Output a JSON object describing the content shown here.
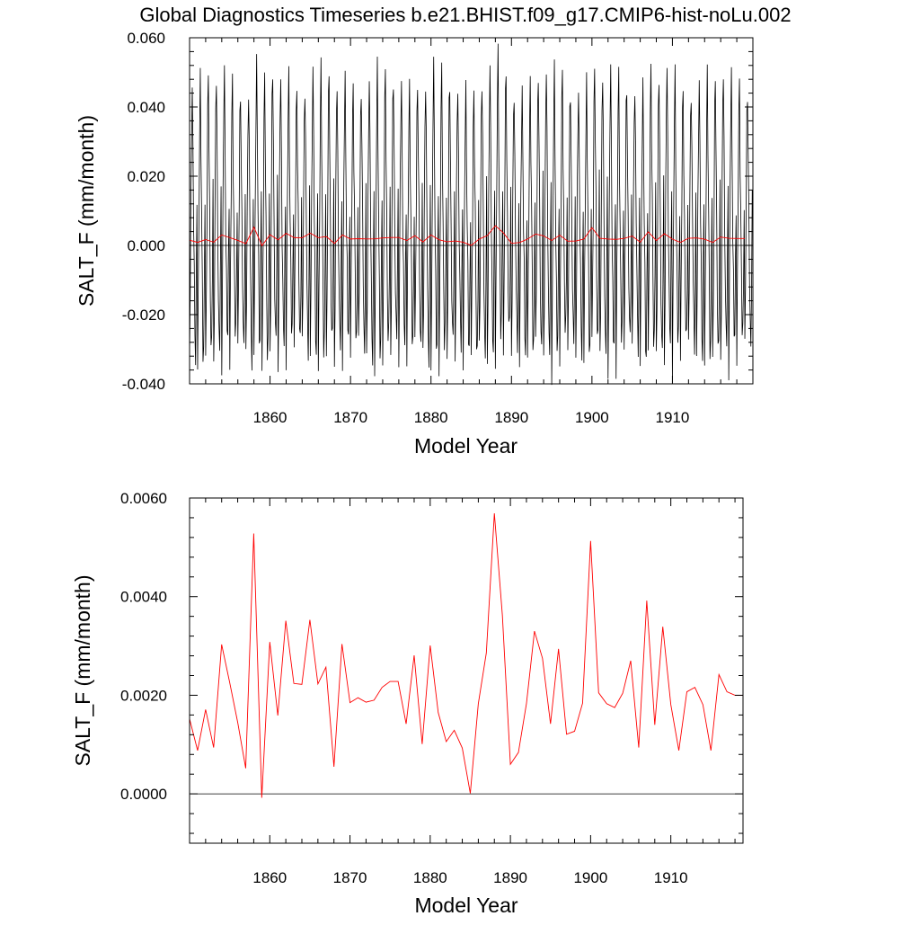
{
  "title": "Global Diagnostics Timeseries b.e21.BHIST.f09_g17.CMIP6-hist-noLu.002",
  "colors": {
    "monthly": "#000000",
    "annual": "#ff0000",
    "zero_line": "#000000"
  },
  "chart_data": [
    {
      "type": "line",
      "xlabel": "Model Year",
      "ylabel": "SALT_F (mm/month)",
      "xlim": [
        1850,
        1920
      ],
      "ylim": [
        -0.04,
        0.06
      ],
      "x_ticks": [
        {
          "value": 1860,
          "label": "1860"
        },
        {
          "value": 1870,
          "label": "1870"
        },
        {
          "value": 1880,
          "label": "1880"
        },
        {
          "value": 1890,
          "label": "1890"
        },
        {
          "value": 1900,
          "label": "1900"
        },
        {
          "value": 1910,
          "label": "1910"
        }
      ],
      "y_ticks": [
        {
          "value": 0.06,
          "label": "0.060"
        },
        {
          "value": 0.04,
          "label": "0.040"
        },
        {
          "value": 0.02,
          "label": "0.020"
        },
        {
          "value": 0.0,
          "label": "0.000"
        },
        {
          "value": -0.02,
          "label": "-0.020"
        },
        {
          "value": -0.04,
          "label": "-0.040"
        }
      ],
      "reference_line": 0.0,
      "monthly_series": {
        "start_year": 1850,
        "end_year": 1919,
        "annual_cycle": [
          -0.035,
          -0.015,
          0.01,
          0.035,
          0.046,
          0.025,
          0.005,
          -0.012,
          -0.028,
          -0.03,
          -0.01,
          0.012
        ]
      },
      "series": [
        {
          "x": [
            1850,
            1851,
            1852,
            1853,
            1854,
            1855,
            1856,
            1857,
            1858,
            1859,
            1860,
            1861,
            1862,
            1863,
            1864,
            1865,
            1866,
            1867,
            1868,
            1869,
            1870,
            1871,
            1872,
            1873,
            1874,
            1875,
            1876,
            1877,
            1878,
            1879,
            1880,
            1881,
            1882,
            1883,
            1884,
            1885,
            1886,
            1887,
            1888,
            1889,
            1890,
            1891,
            1892,
            1893,
            1894,
            1895,
            1896,
            1897,
            1898,
            1899,
            1900,
            1901,
            1902,
            1903,
            1904,
            1905,
            1906,
            1907,
            1908,
            1909,
            1910,
            1911,
            1912,
            1913,
            1914,
            1915,
            1916,
            1917,
            1918,
            1919
          ],
          "values": [
            0.00152,
            0.00088,
            0.00171,
            0.00094,
            0.00303,
            0.00226,
            0.00145,
            0.00052,
            0.00528,
            -8e-05,
            0.00308,
            0.00159,
            0.00351,
            0.00224,
            0.00222,
            0.00353,
            0.00223,
            0.00257,
            0.00055,
            0.00304,
            0.00185,
            0.00195,
            0.00186,
            0.0019,
            0.00216,
            0.00228,
            0.00228,
            0.00142,
            0.00281,
            0.00101,
            0.00301,
            0.00165,
            0.00106,
            0.00129,
            0.00093,
            1e-05,
            0.00183,
            0.00286,
            0.00569,
            0.00362,
            0.0006,
            0.00084,
            0.00183,
            0.0033,
            0.00275,
            0.00142,
            0.00294,
            0.00121,
            0.00127,
            0.00184,
            0.00513,
            0.00205,
            0.00183,
            0.00175,
            0.00204,
            0.0027,
            0.00094,
            0.00392,
            0.0014,
            0.00339,
            0.00181,
            0.00088,
            0.00207,
            0.00216,
            0.00181,
            0.00088,
            0.00242,
            0.00207,
            0.002,
            0.002
          ]
        }
      ]
    },
    {
      "type": "line",
      "xlabel": "Model Year",
      "ylabel": "SALT_F (mm/month)",
      "xlim": [
        1850,
        1919
      ],
      "ylim": [
        -0.001,
        0.006
      ],
      "x_ticks": [
        {
          "value": 1860,
          "label": "1860"
        },
        {
          "value": 1870,
          "label": "1870"
        },
        {
          "value": 1880,
          "label": "1880"
        },
        {
          "value": 1890,
          "label": "1890"
        },
        {
          "value": 1900,
          "label": "1900"
        },
        {
          "value": 1910,
          "label": "1910"
        }
      ],
      "y_ticks": [
        {
          "value": 0.006,
          "label": "0.0060"
        },
        {
          "value": 0.004,
          "label": "0.0040"
        },
        {
          "value": 0.002,
          "label": "0.0020"
        },
        {
          "value": 0.0,
          "label": "0.0000"
        }
      ],
      "reference_line": 0.0,
      "series": [
        {
          "x": [
            1850,
            1851,
            1852,
            1853,
            1854,
            1855,
            1856,
            1857,
            1858,
            1859,
            1860,
            1861,
            1862,
            1863,
            1864,
            1865,
            1866,
            1867,
            1868,
            1869,
            1870,
            1871,
            1872,
            1873,
            1874,
            1875,
            1876,
            1877,
            1878,
            1879,
            1880,
            1881,
            1882,
            1883,
            1884,
            1885,
            1886,
            1887,
            1888,
            1889,
            1890,
            1891,
            1892,
            1893,
            1894,
            1895,
            1896,
            1897,
            1898,
            1899,
            1900,
            1901,
            1902,
            1903,
            1904,
            1905,
            1906,
            1907,
            1908,
            1909,
            1910,
            1911,
            1912,
            1913,
            1914,
            1915,
            1916,
            1917,
            1918,
            1919
          ],
          "values": [
            0.00152,
            0.00088,
            0.00171,
            0.00094,
            0.00303,
            0.00226,
            0.00145,
            0.00052,
            0.00528,
            -8e-05,
            0.00308,
            0.00159,
            0.00351,
            0.00224,
            0.00222,
            0.00353,
            0.00223,
            0.00257,
            0.00055,
            0.00304,
            0.00185,
            0.00195,
            0.00186,
            0.0019,
            0.00216,
            0.00228,
            0.00228,
            0.00142,
            0.00281,
            0.00101,
            0.00301,
            0.00165,
            0.00106,
            0.00129,
            0.00093,
            1e-05,
            0.00183,
            0.00286,
            0.00569,
            0.00362,
            0.0006,
            0.00084,
            0.00183,
            0.0033,
            0.00275,
            0.00142,
            0.00294,
            0.00121,
            0.00127,
            0.00184,
            0.00513,
            0.00205,
            0.00183,
            0.00175,
            0.00204,
            0.0027,
            0.00094,
            0.00392,
            0.0014,
            0.00339,
            0.00181,
            0.00088,
            0.00207,
            0.00216,
            0.00181,
            0.00088,
            0.00242,
            0.00207,
            0.002,
            0.002
          ]
        }
      ]
    }
  ]
}
